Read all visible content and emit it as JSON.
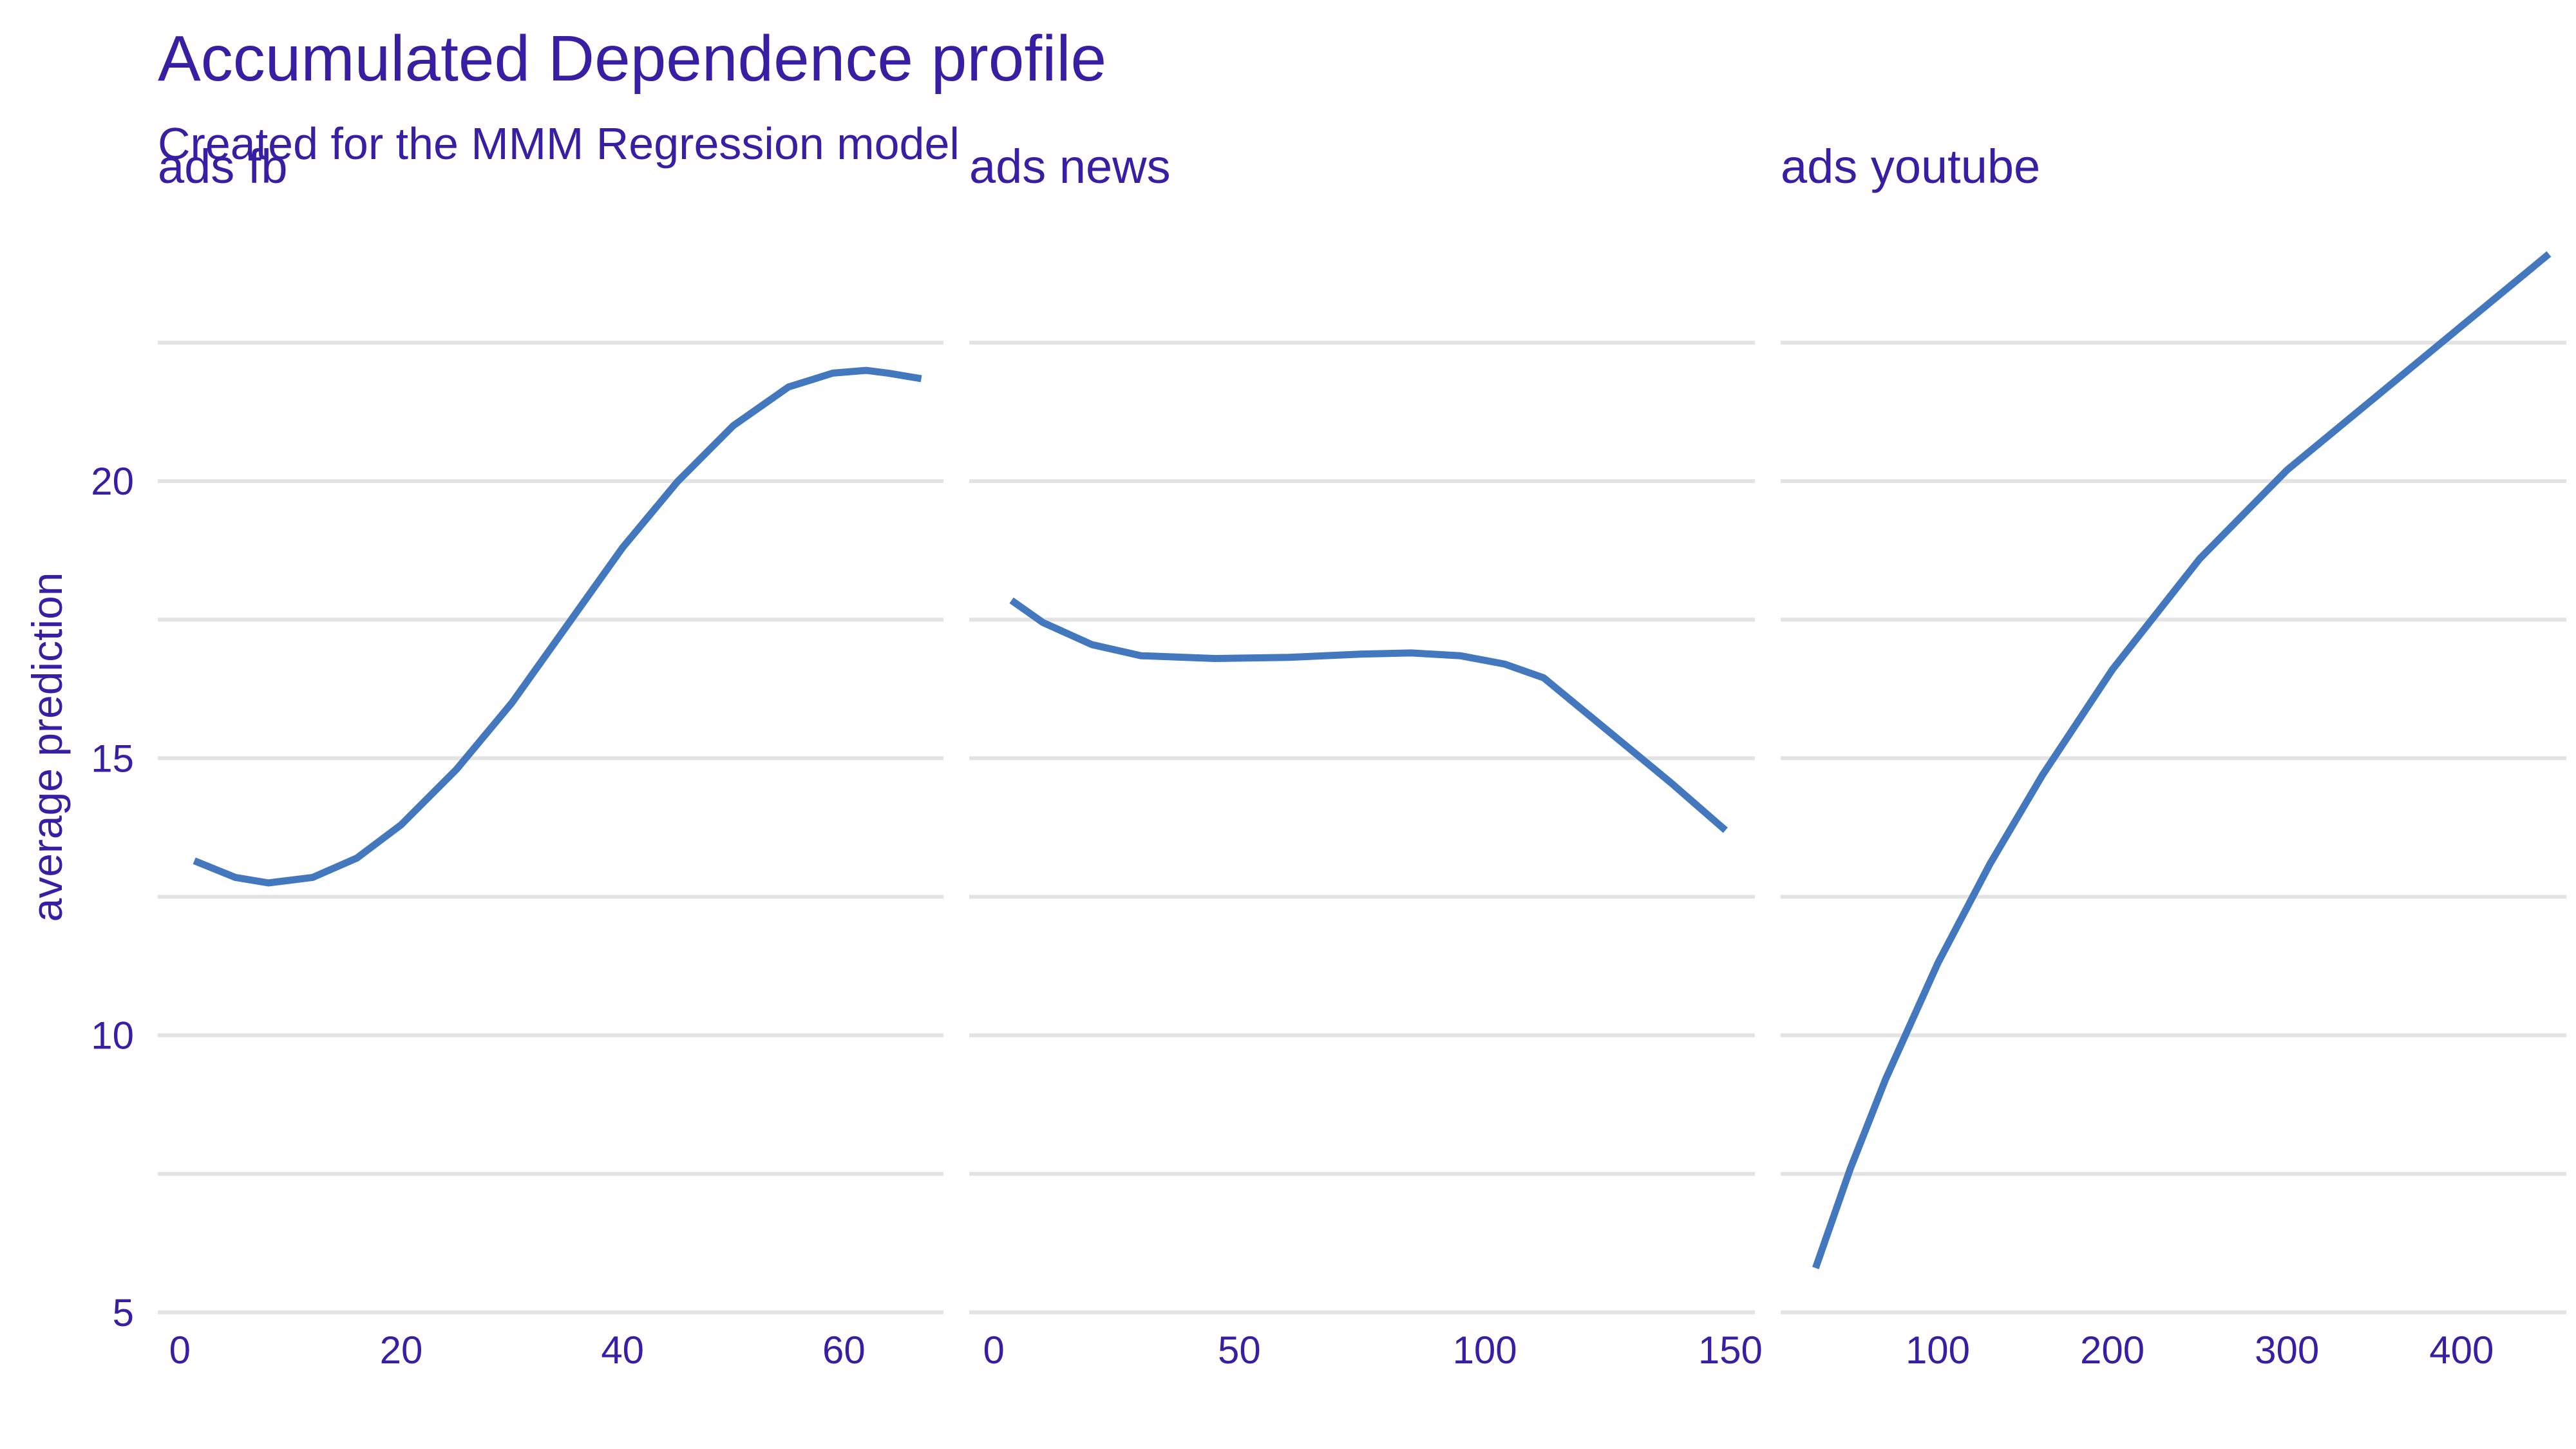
{
  "chart_data": {
    "type": "line",
    "title": "Accumulated Dependence profile",
    "subtitle": "Created for the MMM Regression model",
    "ylabel": "average prediction",
    "ylim": [
      4.8,
      24.5
    ],
    "yticks": [
      5,
      10,
      15,
      20
    ],
    "grid": true,
    "line_color": "#4378bf",
    "text_color": "#371ea3",
    "panels": [
      {
        "label": "ads  fb",
        "xlim": [
          -2,
          69
        ],
        "xticks": [
          0,
          20,
          40,
          60
        ],
        "x": [
          1.3,
          5,
          8,
          12,
          16,
          20,
          25,
          30,
          35,
          40,
          45,
          50,
          55,
          59,
          62,
          64,
          67
        ],
        "y": [
          13.15,
          12.85,
          12.75,
          12.85,
          13.2,
          13.8,
          14.8,
          16.0,
          17.4,
          18.8,
          20.0,
          21.0,
          21.7,
          21.95,
          22.0,
          21.95,
          21.85
        ]
      },
      {
        "label": "ads  news",
        "xlim": [
          -5,
          155
        ],
        "xticks": [
          0,
          50,
          100,
          150
        ],
        "x": [
          3.6,
          10,
          20,
          30,
          45,
          60,
          75,
          85,
          95,
          104,
          112,
          125,
          138,
          149
        ],
        "y": [
          17.85,
          17.45,
          17.05,
          16.85,
          16.8,
          16.82,
          16.88,
          16.9,
          16.85,
          16.7,
          16.45,
          15.5,
          14.55,
          13.7
        ]
      },
      {
        "label": "ads  youtube",
        "xlim": [
          10,
          460
        ],
        "xticks": [
          100,
          200,
          300,
          400
        ],
        "x": [
          30,
          50,
          70,
          100,
          130,
          160,
          200,
          250,
          300,
          350,
          400,
          450
        ],
        "y": [
          5.8,
          7.6,
          9.2,
          11.3,
          13.1,
          14.7,
          16.6,
          18.6,
          20.2,
          21.5,
          22.8,
          24.1
        ]
      }
    ]
  }
}
